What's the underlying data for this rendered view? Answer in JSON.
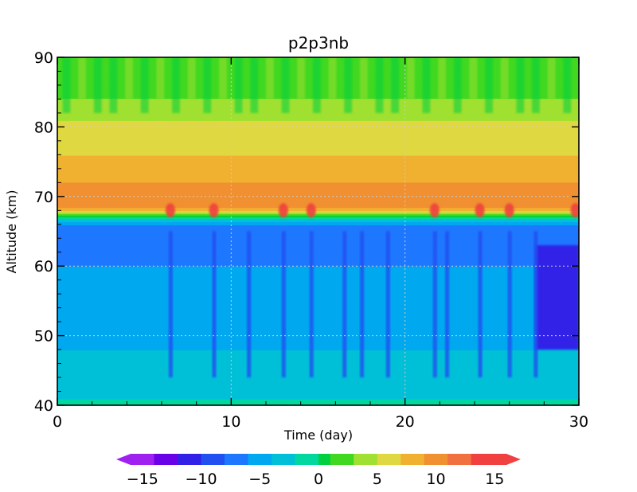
{
  "chart_data": {
    "type": "heatmap",
    "title": "p2p3nb",
    "xlabel": "Time (day)",
    "ylabel": "Altitude (km)",
    "xlim": [
      0,
      30
    ],
    "ylim": [
      40,
      90
    ],
    "x_ticks": [
      {
        "value": 0,
        "label": "0"
      },
      {
        "value": 10,
        "label": "10"
      },
      {
        "value": 20,
        "label": "20"
      },
      {
        "value": 30,
        "label": "30"
      }
    ],
    "y_ticks": [
      {
        "value": 40,
        "label": "40"
      },
      {
        "value": 50,
        "label": "50"
      },
      {
        "value": 60,
        "label": "60"
      },
      {
        "value": 70,
        "label": "70"
      },
      {
        "value": 80,
        "label": "80"
      },
      {
        "value": 90,
        "label": "90"
      }
    ],
    "grid": "dotted at major ticks",
    "colorbar": {
      "orientation": "horizontal",
      "position": "bottom",
      "range": [
        -16,
        16
      ],
      "step": 1,
      "extend": "both",
      "tick_labels": [
        {
          "value": -15,
          "label": "−15"
        },
        {
          "value": -10,
          "label": "−10"
        },
        {
          "value": -5,
          "label": "−5"
        },
        {
          "value": 0,
          "label": "0"
        },
        {
          "value": 5,
          "label": "5"
        },
        {
          "value": 10,
          "label": "10"
        },
        {
          "value": 15,
          "label": "15"
        }
      ],
      "color_stops": [
        {
          "value": -16,
          "color": "#a020f0"
        },
        {
          "value": -14,
          "color": "#6a00e8"
        },
        {
          "value": -12,
          "color": "#3020e8"
        },
        {
          "value": -10,
          "color": "#2050f0"
        },
        {
          "value": -8,
          "color": "#1e78ff"
        },
        {
          "value": -6,
          "color": "#00a8f0"
        },
        {
          "value": -4,
          "color": "#00c0d8"
        },
        {
          "value": -2,
          "color": "#00d8a0"
        },
        {
          "value": 0,
          "color": "#00d040"
        },
        {
          "value": 1,
          "color": "#40d820"
        },
        {
          "value": 3,
          "color": "#a0e030"
        },
        {
          "value": 5,
          "color": "#e0d840"
        },
        {
          "value": 7,
          "color": "#f0b030"
        },
        {
          "value": 9,
          "color": "#f09030"
        },
        {
          "value": 11,
          "color": "#f07040"
        },
        {
          "value": 13,
          "color": "#f04040"
        },
        {
          "value": 16,
          "color": "#f01090"
        }
      ]
    },
    "field_profile_km_value": [
      [
        40,
        -2
      ],
      [
        41,
        -2
      ],
      [
        42,
        -3
      ],
      [
        44,
        -4
      ],
      [
        48,
        -4
      ],
      [
        52,
        -5
      ],
      [
        56,
        -5
      ],
      [
        60,
        -6
      ],
      [
        62,
        -7
      ],
      [
        64,
        -8
      ],
      [
        65,
        -8
      ],
      [
        66,
        -6
      ],
      [
        66.8,
        -2
      ],
      [
        67.4,
        2
      ],
      [
        68,
        8
      ],
      [
        69,
        10
      ],
      [
        70,
        10
      ],
      [
        72,
        9
      ],
      [
        74,
        8
      ],
      [
        76,
        7
      ],
      [
        78,
        6
      ],
      [
        80,
        6
      ],
      [
        82,
        4
      ],
      [
        84,
        3
      ],
      [
        86,
        2
      ],
      [
        88,
        1.5
      ],
      [
        90,
        1.5
      ]
    ],
    "features": {
      "negative_streaks_days": [
        6.5,
        9,
        11,
        13,
        14.6,
        16.5,
        17.5,
        19,
        21.7,
        22.4,
        24.3,
        26,
        27.5
      ],
      "positive_spots_days": [
        6.5,
        9,
        13,
        14.6,
        21.7,
        24.3,
        26,
        29.8
      ],
      "strong_negative_region": {
        "x": [
          27.5,
          30
        ],
        "y": [
          48,
          63
        ],
        "value": -11
      }
    }
  }
}
